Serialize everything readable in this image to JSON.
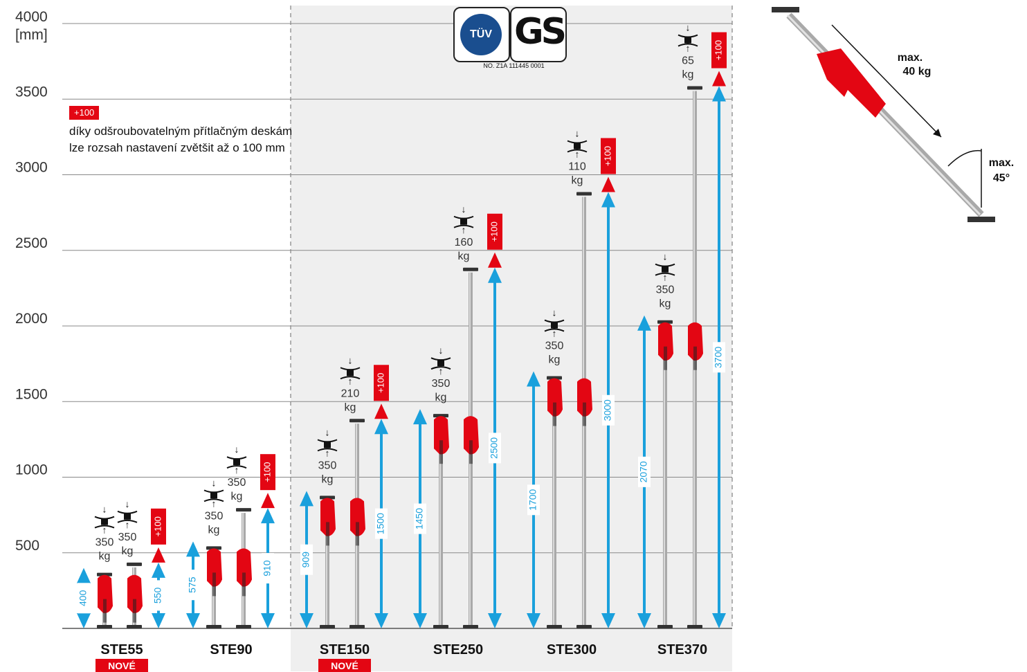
{
  "chart_data": {
    "type": "bar",
    "y_unit_top": "4000",
    "y_unit_label": "[mm]",
    "ylim": [
      0,
      4000
    ],
    "yticks": [
      "500",
      "1000",
      "1500",
      "2000",
      "2500",
      "3000",
      "3500"
    ],
    "categories": [
      {
        "model": "STE55",
        "badge": "NOVÉ",
        "min_height": 400,
        "max_height": 550,
        "load_min": "350",
        "load_max": "350",
        "label_min": "400",
        "label_max": "550"
      },
      {
        "model": "STE90",
        "badge": "",
        "min_height": 575,
        "max_height": 910,
        "load_min": "350",
        "load_max": "350",
        "label_min": "575",
        "label_max": "910"
      },
      {
        "model": "STE150",
        "badge": "NOVÉ",
        "min_height": 909,
        "max_height": 1500,
        "load_min": "350",
        "load_max": "210",
        "label_min": "909",
        "label_max": "1500"
      },
      {
        "model": "STE250",
        "badge": "",
        "min_height": 1450,
        "max_height": 2500,
        "load_min": "350",
        "load_max": "160",
        "label_min": "1450",
        "label_max": "2500"
      },
      {
        "model": "STE300",
        "badge": "",
        "min_height": 1700,
        "max_height": 3000,
        "load_min": "350",
        "load_max": "110",
        "label_min": "1700",
        "label_max": "3000"
      },
      {
        "model": "STE370",
        "badge": "",
        "min_height": 2070,
        "max_height": 3700,
        "load_min": "350",
        "load_max": "65",
        "label_min": "2070",
        "label_max": "3700"
      }
    ],
    "extension_label": "+100",
    "load_unit": "kg",
    "accent_color": "#e30613",
    "arrow_color": "#1aa0dc",
    "shaded_band": [
      "STE150",
      "STE250",
      "STE300",
      "STE370"
    ]
  },
  "note": {
    "badge": "+100",
    "text": "díky odšroubovatelným přítlačným deskám lze rozsah nastavení zvětšit až o 100 mm"
  },
  "certificate": {
    "tuv": "TÜV",
    "gs": "GS",
    "number": "NO. Z1A 111445 0001"
  },
  "diagram": {
    "max_load": "max.\n40 kg",
    "max_angle": "max.\n45°"
  }
}
